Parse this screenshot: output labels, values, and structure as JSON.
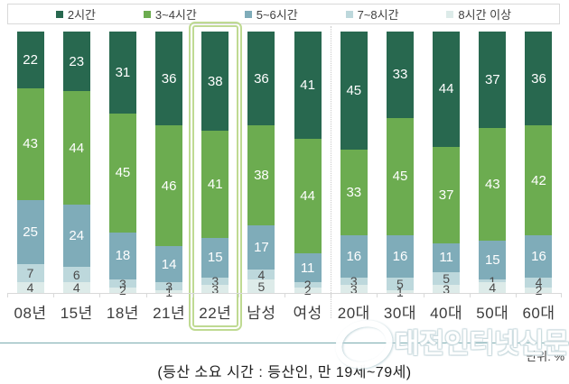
{
  "legend": {
    "items": [
      {
        "label": "2시간",
        "color": "#28684F"
      },
      {
        "label": "3~4시간",
        "color": "#6CAC50"
      },
      {
        "label": "5~6시간",
        "color": "#7FACB9"
      },
      {
        "label": "7~8시간",
        "color": "#BDD8DC"
      },
      {
        "label": "8시간 이상",
        "color": "#DDEBE9"
      }
    ]
  },
  "chart_data": {
    "type": "bar",
    "subtype": "100-percent-stacked-column",
    "categories": [
      "08년",
      "15년",
      "18년",
      "21년",
      "22년",
      "남성",
      "여성",
      "20대",
      "30대",
      "40대",
      "50대",
      "60대"
    ],
    "series": [
      {
        "name": "2시간",
        "color": "#28684F",
        "label_color": "light",
        "values": [
          22,
          23,
          31,
          36,
          38,
          36,
          41,
          45,
          33,
          44,
          37,
          36
        ]
      },
      {
        "name": "3~4시간",
        "color": "#6CAC50",
        "label_color": "light",
        "values": [
          43,
          44,
          45,
          46,
          41,
          38,
          44,
          33,
          45,
          37,
          43,
          42
        ]
      },
      {
        "name": "5~6시간",
        "color": "#7FACB9",
        "label_color": "light",
        "values": [
          25,
          24,
          18,
          14,
          15,
          17,
          11,
          16,
          16,
          11,
          15,
          16
        ]
      },
      {
        "name": "7~8시간",
        "color": "#BDD8DC",
        "label_color": "dark",
        "values": [
          7,
          6,
          3,
          3,
          3,
          4,
          2,
          3,
          5,
          5,
          1,
          4
        ]
      },
      {
        "name": "8시간 이상",
        "color": "#DDEBE9",
        "label_color": "dark",
        "values": [
          4,
          4,
          2,
          1,
          3,
          5,
          2,
          3,
          1,
          3,
          4,
          2
        ]
      }
    ],
    "ylim": [
      0,
      100
    ],
    "legend_position": "top",
    "grid": false,
    "highlighted_category": "22년",
    "group_separator_after": "여성",
    "unit_label": "단위: %"
  },
  "caption": "(등산 소요 시간 : 등산인, 만 19세~79세)",
  "watermark": {
    "text": "대전인터넷신문"
  },
  "colors": {
    "axis": "#D9D9D9",
    "highlight_border": "#BFDA92",
    "group_separator": "#C9C9C9",
    "bottom_rule": "#7AABAF",
    "value_label_light": "#FFFFFF",
    "value_label_dark": "#4B4B4B",
    "category_label": "#3C3C3C",
    "legend_text": "#404040"
  }
}
